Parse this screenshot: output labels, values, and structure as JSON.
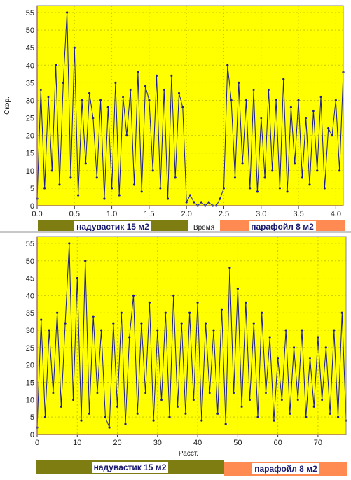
{
  "colors": {
    "plot_bg": "#ffff00",
    "series": "#1c1c9a",
    "legend_olive": "#7d7d12",
    "legend_orange": "#ff8a52",
    "axis": "#d94a2a"
  },
  "top": {
    "ylabel": "Скор.",
    "xlabel": "Время",
    "legend": {
      "left": "надувастик 15 м2",
      "right": "парафойл 8 м2"
    }
  },
  "bottom": {
    "xlabel": "Расст.",
    "legend": {
      "left": "надувастик 15 м2",
      "right": "парафойл 8 м2"
    }
  },
  "chart_data": [
    {
      "type": "line",
      "title": "",
      "xlabel": "Время",
      "ylabel": "Скор.",
      "xlim": [
        0,
        4.1
      ],
      "ylim": [
        0,
        57
      ],
      "x_ticks": [
        0.0,
        0.5,
        1.0,
        1.5,
        2.0,
        2.5,
        3.0,
        3.5,
        4.0
      ],
      "x_tick_labels": [
        "0.0",
        "0.5",
        "1.0",
        "1.5",
        "2.0",
        "2.5",
        "3.0",
        "3.5",
        "4.0"
      ],
      "y_ticks": [
        0,
        5,
        10,
        15,
        20,
        25,
        30,
        35,
        40,
        45,
        50,
        55
      ],
      "grid": true,
      "legend": [
        "надувастик 15 м2",
        "парафойл 8 м2"
      ],
      "series": [
        {
          "x": [
            0.0,
            0.05,
            0.1,
            0.15,
            0.2,
            0.25,
            0.3,
            0.35,
            0.4,
            0.45,
            0.5,
            0.55,
            0.6,
            0.65,
            0.7,
            0.75,
            0.8,
            0.85,
            0.9,
            0.95,
            1.0,
            1.05,
            1.1,
            1.15,
            1.2,
            1.25,
            1.3,
            1.35,
            1.4,
            1.45,
            1.5,
            1.55,
            1.6,
            1.65,
            1.7,
            1.75,
            1.8,
            1.85,
            1.9,
            1.95,
            2.0,
            2.05,
            2.1,
            2.15,
            2.2,
            2.25,
            2.3,
            2.35,
            2.4,
            2.45,
            2.5,
            2.55,
            2.6,
            2.65,
            2.7,
            2.75,
            2.8,
            2.85,
            2.9,
            2.95,
            3.0,
            3.05,
            3.1,
            3.15,
            3.2,
            3.25,
            3.3,
            3.35,
            3.4,
            3.45,
            3.5,
            3.55,
            3.6,
            3.65,
            3.7,
            3.75,
            3.8,
            3.85,
            3.9,
            3.95,
            4.0,
            4.05,
            4.1
          ],
          "y": [
            2,
            33,
            5,
            31,
            10,
            40,
            6,
            35,
            55,
            8,
            45,
            3,
            30,
            12,
            32,
            25,
            8,
            30,
            2,
            28,
            5,
            35,
            3,
            31,
            20,
            33,
            6,
            38,
            4,
            34,
            30,
            10,
            37,
            5,
            33,
            2,
            37,
            8,
            32,
            28,
            1,
            3,
            1,
            0,
            1,
            0,
            1,
            0,
            0,
            2,
            5,
            40,
            30,
            8,
            35,
            12,
            30,
            5,
            33,
            4,
            25,
            8,
            33,
            10,
            30,
            5,
            36,
            4,
            28,
            12,
            30,
            8,
            25,
            6,
            27,
            10,
            31,
            5,
            22,
            20,
            30,
            10,
            38
          ]
        }
      ]
    },
    {
      "type": "line",
      "title": "",
      "xlabel": "Расст.",
      "ylabel": "",
      "xlim": [
        0,
        77
      ],
      "ylim": [
        0,
        57
      ],
      "x_ticks": [
        0,
        10,
        20,
        30,
        40,
        50,
        60,
        70
      ],
      "x_tick_labels": [
        "0",
        "10",
        "20",
        "30",
        "40",
        "50",
        "60",
        "70"
      ],
      "y_ticks": [
        0,
        5,
        10,
        15,
        20,
        25,
        30,
        35,
        40,
        45,
        50,
        55
      ],
      "grid": true,
      "legend": [
        "надувастик 15 м2",
        "парафойл 8 м2"
      ],
      "series": [
        {
          "x": [
            0,
            1,
            2,
            3,
            4,
            5,
            6,
            7,
            8,
            9,
            10,
            11,
            12,
            13,
            14,
            15,
            16,
            17,
            18,
            19,
            20,
            21,
            22,
            23,
            24,
            25,
            26,
            27,
            28,
            29,
            30,
            31,
            32,
            33,
            34,
            35,
            36,
            37,
            38,
            39,
            40,
            41,
            42,
            43,
            44,
            45,
            46,
            47,
            48,
            49,
            50,
            51,
            52,
            53,
            54,
            55,
            56,
            57,
            58,
            59,
            60,
            61,
            62,
            63,
            64,
            65,
            66,
            67,
            68,
            69,
            70,
            71,
            72,
            73,
            74,
            75,
            76,
            77
          ],
          "y": [
            2,
            33,
            5,
            30,
            12,
            35,
            8,
            32,
            55,
            10,
            45,
            4,
            50,
            6,
            34,
            12,
            30,
            5,
            2,
            32,
            8,
            35,
            3,
            28,
            40,
            6,
            32,
            12,
            38,
            4,
            30,
            10,
            35,
            5,
            40,
            8,
            32,
            6,
            35,
            10,
            38,
            4,
            32,
            12,
            30,
            6,
            36,
            3,
            48,
            12,
            42,
            8,
            38,
            10,
            32,
            5,
            35,
            12,
            28,
            4,
            22,
            10,
            30,
            6,
            25,
            10,
            30,
            5,
            22,
            8,
            28,
            10,
            25,
            6,
            30,
            5,
            35,
            4
          ]
        }
      ]
    }
  ]
}
